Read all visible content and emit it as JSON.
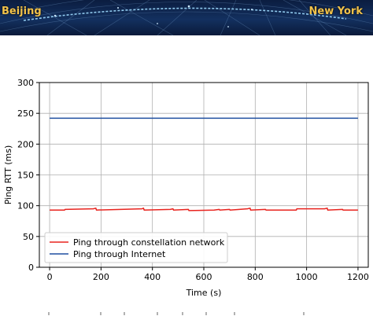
{
  "banner": {
    "left_city": "Beijing",
    "right_city": "New York",
    "bg_color": "#0b1d40",
    "text_color": "#f1c24a"
  },
  "chart_data": {
    "type": "line",
    "title": "",
    "xlabel": "Time (s)",
    "ylabel": "Ping  RTT (ms)",
    "xlim": [
      -40,
      1240
    ],
    "ylim": [
      0,
      300
    ],
    "xticks": [
      0,
      200,
      400,
      600,
      800,
      1000,
      1200
    ],
    "yticks": [
      0,
      50,
      100,
      150,
      200,
      250,
      300
    ],
    "grid": true,
    "legend_position": "lower-left",
    "series": [
      {
        "name": "Ping through constellation network",
        "color": "#e8231e",
        "x": [
          0,
          58,
          60,
          170,
          180,
          182,
          360,
          365,
          368,
          470,
          480,
          482,
          540,
          542,
          640,
          660,
          662,
          700,
          702,
          770,
          780,
          782,
          840,
          842,
          960,
          962,
          1070,
          1080,
          1082,
          1140,
          1142,
          1200
        ],
        "y": [
          93,
          93,
          94,
          95,
          96,
          93,
          95,
          96,
          93,
          94,
          95,
          93,
          94,
          92,
          93,
          94,
          93,
          94,
          93,
          95,
          96,
          93,
          94,
          93,
          93,
          95,
          95,
          96,
          93,
          94,
          93,
          93
        ]
      },
      {
        "name": "Ping through Internet",
        "color": "#1f4fa0",
        "x": [
          0,
          1200
        ],
        "y": [
          242,
          242
        ]
      }
    ]
  }
}
